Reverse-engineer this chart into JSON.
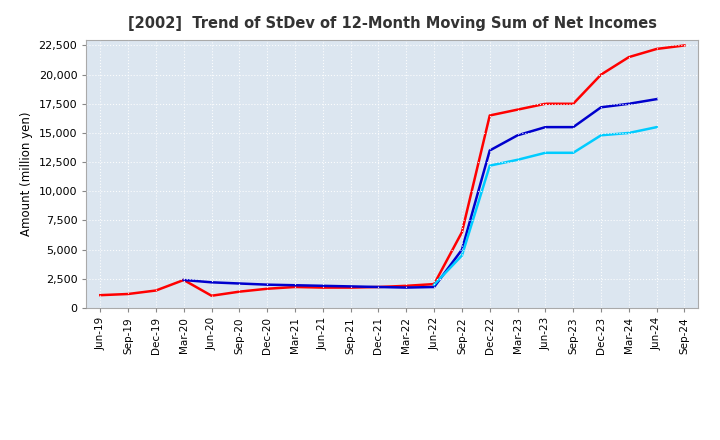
{
  "title": "[2002]  Trend of StDev of 12-Month Moving Sum of Net Incomes",
  "ylabel": "Amount (million yen)",
  "plot_bg_color": "#dce6f0",
  "fig_bg_color": "#ffffff",
  "grid_color": "#ffffff",
  "ylim": [
    0,
    23000
  ],
  "yticks": [
    0,
    2500,
    5000,
    7500,
    10000,
    12500,
    15000,
    17500,
    20000,
    22500
  ],
  "xtick_labels": [
    "Jun-19",
    "Sep-19",
    "Dec-19",
    "Mar-20",
    "Jun-20",
    "Sep-20",
    "Dec-20",
    "Mar-21",
    "Jun-21",
    "Sep-21",
    "Dec-21",
    "Mar-22",
    "Jun-22",
    "Sep-22",
    "Dec-22",
    "Mar-23",
    "Jun-23",
    "Sep-23",
    "Dec-23",
    "Mar-24",
    "Jun-24",
    "Sep-24"
  ],
  "series_3yr_color": "#ff0000",
  "series_5yr_color": "#0000cd",
  "series_7yr_color": "#00ccff",
  "series_10yr_color": "#008000",
  "y_3yr": [
    1100,
    1200,
    1500,
    2400,
    1050,
    1400,
    1650,
    1800,
    1750,
    1750,
    1800,
    1900,
    2050,
    6500,
    16500,
    17000,
    17500,
    17500,
    20000,
    21500,
    22200,
    22500
  ],
  "y_5yr": [
    null,
    null,
    null,
    2400,
    2200,
    2100,
    2000,
    1950,
    1900,
    1850,
    1800,
    1750,
    1800,
    5000,
    13500,
    14800,
    15500,
    15500,
    17200,
    17500,
    17900,
    null
  ],
  "y_7yr": [
    null,
    null,
    null,
    null,
    null,
    null,
    null,
    null,
    null,
    null,
    null,
    null,
    2000,
    4500,
    12200,
    12700,
    13300,
    13300,
    14800,
    15000,
    15500,
    null
  ],
  "y_10yr": [
    null,
    null,
    null,
    null,
    null,
    null,
    null,
    null,
    null,
    null,
    null,
    null,
    null,
    null,
    null,
    null,
    null,
    null,
    null,
    null,
    null,
    null
  ]
}
